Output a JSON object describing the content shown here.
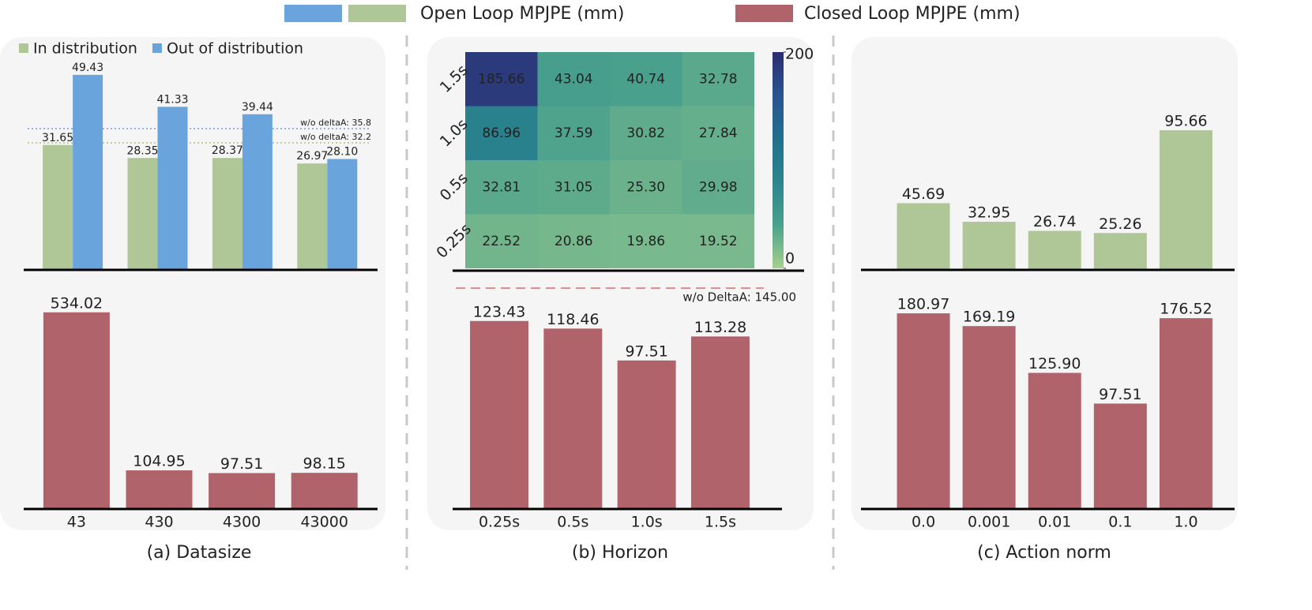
{
  "legend": [
    {
      "label": "Open Loop MPJPE (mm)",
      "colors": [
        "#69a4dd",
        "#afc797"
      ]
    },
    {
      "label": "Closed Loop MPJPE (mm)",
      "colors": [
        "#b0636a"
      ]
    }
  ],
  "chart_data": [
    {
      "type": "bar",
      "legend": "upper left",
      "ylim": [
        0,
        50
      ],
      "series": [
        {
          "name": "In distribution",
          "color": "#afc797",
          "values": [
            31.65,
            28.35,
            28.37,
            26.97
          ]
        },
        {
          "name": "Out of distribution",
          "color": "#69a4dd",
          "values": [
            49.43,
            41.33,
            39.44,
            28.1
          ],
          "value_labels": [
            "49.43",
            "41.33",
            "39.44",
            "28.10"
          ]
        }
      ],
      "references": [
        {
          "value": 35.8,
          "label": "w/o deltaA: 35.8",
          "color": "#8fb5e6"
        },
        {
          "value": 32.2,
          "label": "w/o deltaA: 32.2",
          "color": "#bccf9f"
        }
      ]
    },
    {
      "type": "bar",
      "categories": [
        "43",
        "430",
        "4300",
        "43000"
      ],
      "values": [
        534.02,
        104.95,
        97.51,
        98.15
      ],
      "color": "#b0636a",
      "ylim": [
        0,
        600
      ],
      "caption": "(a) Datasize"
    },
    {
      "type": "heatmap",
      "rows": [
        "1.5s",
        "1.0s",
        "0.5s",
        "0.25s"
      ],
      "values": [
        [
          185.66,
          43.04,
          40.74,
          32.78
        ],
        [
          86.96,
          37.59,
          30.82,
          27.84
        ],
        [
          32.81,
          31.05,
          25.3,
          29.98
        ],
        [
          22.52,
          20.86,
          19.86,
          19.52
        ]
      ],
      "value_labels": [
        [
          "185.66",
          "43.04",
          "40.74",
          "32.78"
        ],
        [
          "86.96",
          "37.59",
          "30.82",
          "27.84"
        ],
        [
          "32.81",
          "31.05",
          "25.30",
          "29.98"
        ],
        [
          "22.52",
          "20.86",
          "19.86",
          "19.52"
        ]
      ],
      "zlim": [
        0,
        200
      ],
      "zticks": [
        0,
        200
      ],
      "colormap": [
        "#a5d18d",
        "#4aa08c",
        "#2b858d",
        "#22708d",
        "#2a5490",
        "#2c2c6e"
      ]
    },
    {
      "type": "bar",
      "categories": [
        "0.25s",
        "0.5s",
        "1.0s",
        "1.5s"
      ],
      "values": [
        123.43,
        118.46,
        97.51,
        113.28
      ],
      "color": "#b0636a",
      "ylim": [
        0,
        150
      ],
      "caption": "(b) Horizon",
      "references": [
        {
          "value": 145,
          "label": "w/o DeltaA: 145.00",
          "color": "#d98a8f"
        }
      ]
    },
    {
      "type": "bar",
      "values": [
        45.69,
        32.95,
        26.74,
        25.26,
        95.66
      ],
      "color": "#afc797",
      "ylim": [
        0,
        100
      ]
    },
    {
      "type": "bar",
      "categories": [
        "0.0",
        "0.001",
        "0.01",
        "0.1",
        "1.0"
      ],
      "values": [
        180.97,
        169.19,
        125.9,
        97.51,
        176.52
      ],
      "value_labels": [
        "180.97",
        "169.19",
        "125.90",
        "97.51",
        "176.52"
      ],
      "color": "#b0636a",
      "ylim": [
        0,
        200
      ],
      "caption": "(c) Action norm"
    }
  ]
}
